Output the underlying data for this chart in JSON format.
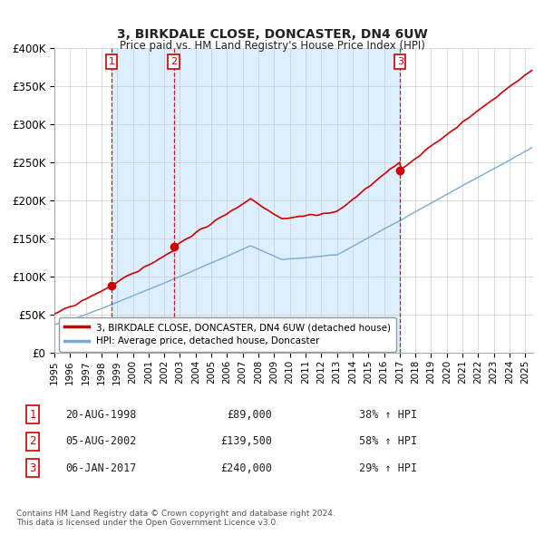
{
  "title": "3, BIRKDALE CLOSE, DONCASTER, DN4 6UW",
  "subtitle": "Price paid vs. HM Land Registry's House Price Index (HPI)",
  "ylim": [
    0,
    400000
  ],
  "yticks": [
    0,
    50000,
    100000,
    150000,
    200000,
    250000,
    300000,
    350000,
    400000
  ],
  "ytick_labels": [
    "£0",
    "£50K",
    "£100K",
    "£150K",
    "£200K",
    "£250K",
    "£300K",
    "£350K",
    "£400K"
  ],
  "xlim_start": 1995.0,
  "xlim_end": 2025.5,
  "legend_line1": "3, BIRKDALE CLOSE, DONCASTER, DN4 6UW (detached house)",
  "legend_line2": "HPI: Average price, detached house, Doncaster",
  "red_color": "#cc0000",
  "blue_color": "#7aaad4",
  "shade_color": "#ddeeff",
  "vline_color": "#cc0000",
  "footnote": "Contains HM Land Registry data © Crown copyright and database right 2024.\nThis data is licensed under the Open Government Licence v3.0.",
  "transactions": [
    {
      "num": 1,
      "date": "20-AUG-1998",
      "price": "£89,000",
      "hpi_change": "38% ↑ HPI",
      "year": 1998.63
    },
    {
      "num": 2,
      "date": "05-AUG-2002",
      "price": "£139,500",
      "hpi_change": "58% ↑ HPI",
      "year": 2002.6
    },
    {
      "num": 3,
      "date": "06-JAN-2017",
      "price": "£240,000",
      "hpi_change": "29% ↑ HPI",
      "year": 2017.02
    }
  ],
  "transaction_prices": [
    89000,
    139500,
    240000
  ]
}
